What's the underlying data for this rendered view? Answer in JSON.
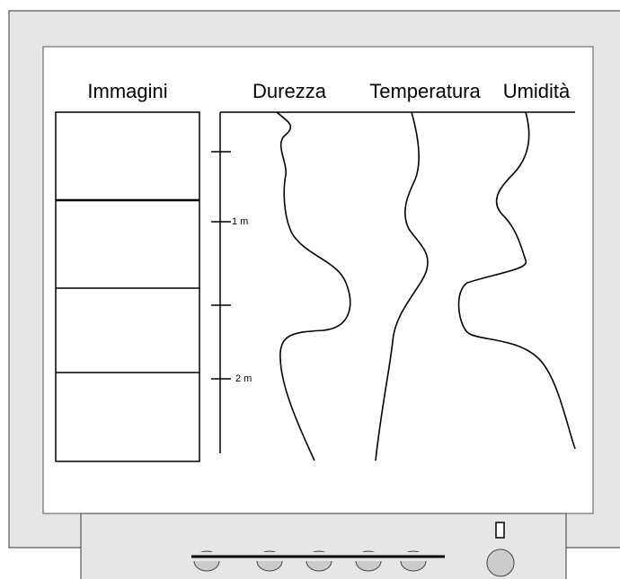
{
  "columns": [
    "Immagini",
    "Durezza",
    "Temperatura",
    "Umidità"
  ],
  "depth_labels": [
    "1 m",
    "2 m"
  ]
}
